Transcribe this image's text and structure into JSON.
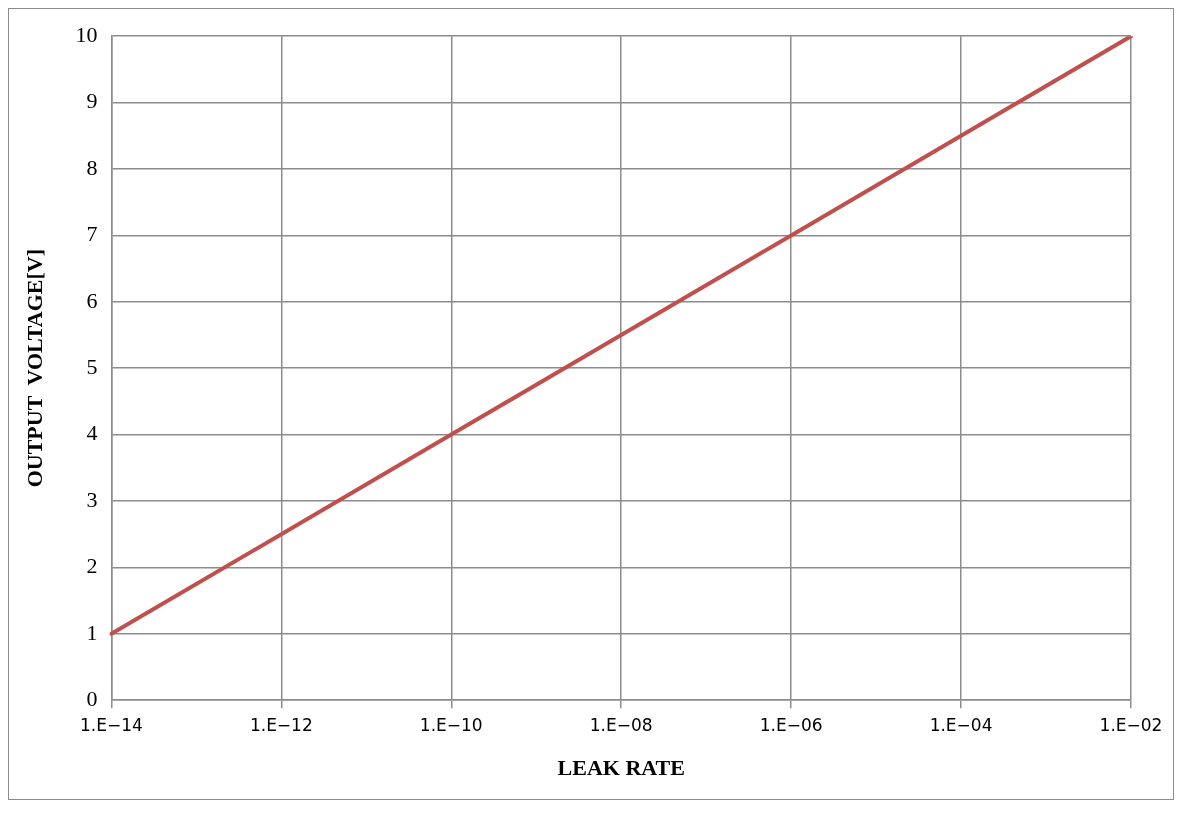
{
  "chart_data": {
    "type": "line",
    "xlabel": "LEAK RATE",
    "ylabel": "OUTPUT  VOLTAGE[V]",
    "categories": [
      "1.E−14",
      "1.E−12",
      "1.E−10",
      "1.E−08",
      "1.E−06",
      "1.E−04",
      "1.E−02"
    ],
    "series": [
      {
        "color": "#c0504d",
        "values": [
          1,
          2.5,
          4,
          5.5,
          7,
          8.5,
          10
        ]
      }
    ],
    "ylim": [
      0,
      10
    ],
    "yticks": [
      0,
      1,
      2,
      3,
      4,
      5,
      6,
      7,
      8,
      9,
      10
    ],
    "grid": true,
    "marker": "none",
    "line_style": "solid",
    "legend": false
  }
}
